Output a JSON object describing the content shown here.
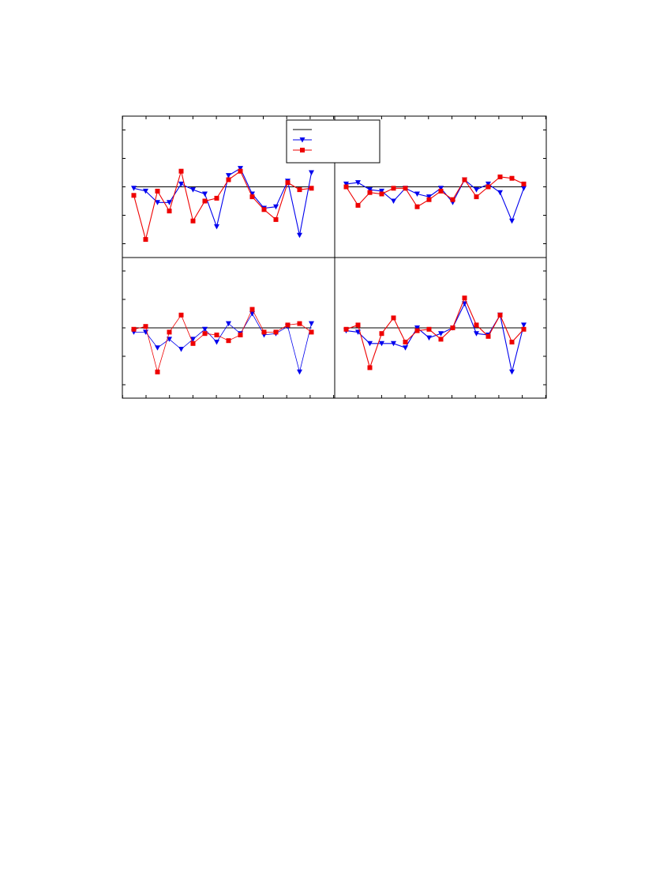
{
  "chart_data": [
    {
      "type": "line",
      "panel": "top-left",
      "x": [
        1,
        2,
        3,
        4,
        5,
        6,
        7,
        8,
        9,
        10,
        11,
        12,
        13,
        14,
        15,
        16
      ],
      "ylim": [
        -2.5,
        2.5
      ],
      "colors": {
        "reference": "#000000",
        "series1": "#0000ee",
        "series2": "#ee0000"
      },
      "series": [
        {
          "values": [
            0,
            0,
            0,
            0,
            0,
            0,
            0,
            0,
            0,
            0,
            0,
            0,
            0,
            0,
            0,
            0
          ]
        },
        {
          "values": [
            -0.05,
            -0.15,
            -0.55,
            -0.55,
            0.1,
            -0.1,
            -0.25,
            -1.4,
            0.4,
            0.65,
            -0.25,
            -0.75,
            -0.7,
            0.2,
            -1.7,
            0.5
          ]
        },
        {
          "values": [
            -0.3,
            -1.85,
            -0.15,
            -0.85,
            0.55,
            -1.2,
            -0.5,
            -0.4,
            0.25,
            0.55,
            -0.35,
            -0.8,
            -1.15,
            0.15,
            -0.1,
            -0.05
          ]
        }
      ]
    },
    {
      "type": "line",
      "panel": "top-right",
      "x": [
        1,
        2,
        3,
        4,
        5,
        6,
        7,
        8,
        9,
        10,
        11,
        12,
        13,
        14,
        15,
        16
      ],
      "ylim": [
        -2.5,
        2.5
      ],
      "colors": {
        "reference": "#000000",
        "series1": "#0000ee",
        "series2": "#ee0000"
      },
      "series": [
        {
          "values": [
            0,
            0,
            0,
            0,
            0,
            0,
            0,
            0,
            0,
            0,
            0,
            0,
            0,
            0,
            0,
            0
          ]
        },
        {
          "values": [
            0.1,
            0.15,
            -0.1,
            -0.15,
            -0.5,
            -0.05,
            -0.25,
            -0.35,
            -0.05,
            -0.55,
            0.25,
            -0.1,
            0.1,
            -0.2,
            -1.2,
            -0.05
          ]
        },
        {
          "values": [
            0,
            -0.65,
            -0.2,
            -0.25,
            -0.05,
            -0.05,
            -0.7,
            -0.45,
            -0.15,
            -0.45,
            0.25,
            -0.35,
            0,
            0.35,
            0.3,
            0.1
          ]
        }
      ]
    },
    {
      "type": "line",
      "panel": "bottom-left",
      "x": [
        1,
        2,
        3,
        4,
        5,
        6,
        7,
        8,
        9,
        10,
        11,
        12,
        13,
        14,
        15,
        16
      ],
      "ylim": [
        -2.5,
        2.5
      ],
      "colors": {
        "reference": "#000000",
        "series1": "#0000ee",
        "series2": "#ee0000"
      },
      "series": [
        {
          "values": [
            0,
            0,
            0,
            0,
            0,
            0,
            0,
            0,
            0,
            0,
            0,
            0,
            0,
            0,
            0,
            0
          ]
        },
        {
          "values": [
            -0.15,
            -0.15,
            -0.7,
            -0.4,
            -0.75,
            -0.4,
            -0.05,
            -0.5,
            0.15,
            -0.2,
            0.5,
            -0.25,
            -0.2,
            0.05,
            -1.55,
            0.15
          ]
        },
        {
          "values": [
            -0.05,
            0.05,
            -1.55,
            -0.15,
            0.45,
            -0.55,
            -0.2,
            -0.25,
            -0.45,
            -0.25,
            0.65,
            -0.15,
            -0.15,
            0.1,
            0.15,
            -0.15
          ]
        }
      ]
    },
    {
      "type": "line",
      "panel": "bottom-right",
      "x": [
        1,
        2,
        3,
        4,
        5,
        6,
        7,
        8,
        9,
        10,
        11,
        12,
        13,
        14,
        15,
        16
      ],
      "ylim": [
        -2.5,
        2.5
      ],
      "colors": {
        "reference": "#000000",
        "series1": "#0000ee",
        "series2": "#ee0000"
      },
      "series": [
        {
          "values": [
            0,
            0,
            0,
            0,
            0,
            0,
            0,
            0,
            0,
            0,
            0,
            0,
            0,
            0,
            0,
            0
          ]
        },
        {
          "values": [
            -0.1,
            -0.15,
            -0.55,
            -0.55,
            -0.55,
            -0.7,
            0,
            -0.35,
            -0.2,
            0,
            0.85,
            -0.2,
            -0.25,
            0.45,
            -1.55,
            0.1
          ]
        },
        {
          "values": [
            -0.05,
            0.1,
            -1.4,
            -0.2,
            0.35,
            -0.5,
            -0.1,
            -0.05,
            -0.4,
            0,
            1.05,
            0.1,
            -0.3,
            0.45,
            -0.5,
            -0.05
          ]
        }
      ]
    }
  ],
  "legend": {
    "placement": "top-center",
    "entries": [
      {
        "marker": "line",
        "color": "#000000"
      },
      {
        "marker": "triangle-down",
        "color": "#0000ee"
      },
      {
        "marker": "square",
        "color": "#ee0000"
      }
    ]
  }
}
